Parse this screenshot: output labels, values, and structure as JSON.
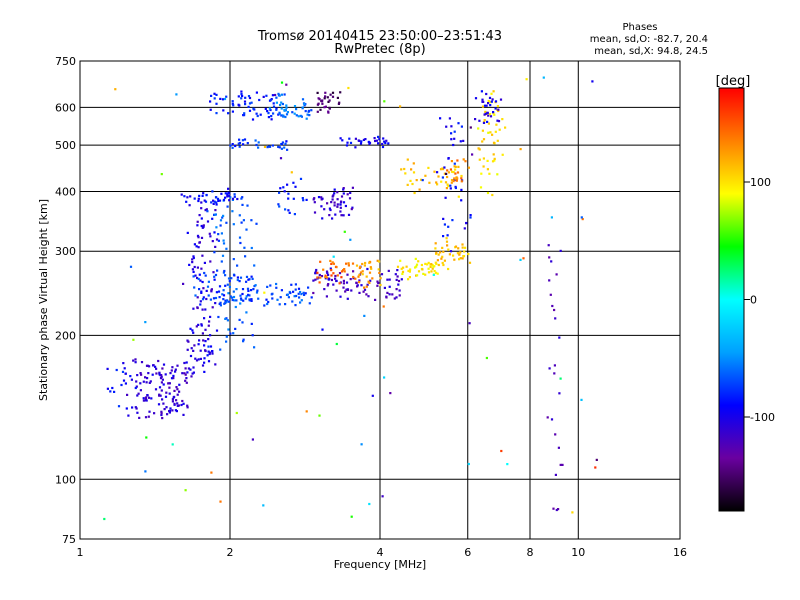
{
  "title": "Tromsø 20140415 23:50:00–23:51:43",
  "subtitle": "RwPretec (8p)",
  "phases": {
    "heading": "Phases",
    "line_o": "mean, sd,O: -82.7, 20.4",
    "line_x": "mean, sd,X:  94.8, 24.5"
  },
  "chart_data": {
    "type": "scatter",
    "xlabel": "Frequency [MHz]",
    "ylabel": "Stationary phase Virtual Height [km]",
    "x_scale": "log",
    "y_scale": "log",
    "xlim": [
      1,
      16
    ],
    "ylim": [
      75,
      750
    ],
    "x_ticks": [
      1,
      2,
      4,
      6,
      8,
      10,
      16
    ],
    "x_tick_labels": [
      "1",
      "2",
      "4",
      "6",
      "8",
      "10",
      "16"
    ],
    "y_ticks": [
      75,
      100,
      200,
      300,
      400,
      500,
      600,
      750
    ],
    "y_tick_labels": [
      "75",
      "100",
      "200",
      "300",
      "400",
      "500",
      "600",
      "750"
    ],
    "grid": true,
    "colorbar": {
      "label": "[deg]",
      "range": [
        -180,
        180
      ],
      "ticks": [
        100,
        0,
        -100
      ],
      "tick_labels": [
        "100",
        "0",
        "-100"
      ],
      "palette": [
        "#000000",
        "#6a00a0",
        "#0000ff",
        "#00a0ff",
        "#00ffff",
        "#00ff00",
        "#ffff00",
        "#ff8000",
        "#ff0000"
      ]
    },
    "trace_segments": [
      {
        "f": [
          1.25,
          1.65
        ],
        "h": [
          135,
          175
        ],
        "phase": -110,
        "n": 140,
        "jitter": 0.07
      },
      {
        "f": [
          1.15,
          1.3
        ],
        "h": [
          140,
          175
        ],
        "phase": -85,
        "n": 16,
        "jitter": 0.04
      },
      {
        "f": [
          1.65,
          1.85
        ],
        "h": [
          170,
          380
        ],
        "phase": -105,
        "n": 120,
        "jitter": 0.06
      },
      {
        "f": [
          1.85,
          2.2
        ],
        "h": [
          190,
          400
        ],
        "phase": -65,
        "n": 90,
        "jitter": 0.07
      },
      {
        "f": [
          1.6,
          2.1
        ],
        "h": [
          380,
          400
        ],
        "phase": -90,
        "n": 40,
        "jitter": 0.03
      },
      {
        "f": [
          1.7,
          2.2
        ],
        "h": [
          235,
          270
        ],
        "phase": -75,
        "n": 60,
        "jitter": 0.04
      },
      {
        "f": [
          1.8,
          2.5
        ],
        "h": [
          570,
          640
        ],
        "phase": -85,
        "n": 60,
        "jitter": 0.03
      },
      {
        "f": [
          2.0,
          2.6
        ],
        "h": [
          490,
          510
        ],
        "phase": -75,
        "n": 30,
        "jitter": 0.02
      },
      {
        "f": [
          2.2,
          2.9
        ],
        "h": [
          230,
          255
        ],
        "phase": -70,
        "n": 50,
        "jitter": 0.03
      },
      {
        "f": [
          2.4,
          2.9
        ],
        "h": [
          570,
          640
        ],
        "phase": -60,
        "n": 50,
        "jitter": 0.03
      },
      {
        "f": [
          2.5,
          2.8
        ],
        "h": [
          360,
          420
        ],
        "phase": -80,
        "n": 20,
        "jitter": 0.05
      },
      {
        "f": [
          2.9,
          4.4
        ],
        "h": [
          240,
          275
        ],
        "phase": -115,
        "n": 90,
        "jitter": 0.03
      },
      {
        "f": [
          3.0,
          3.3
        ],
        "h": [
          590,
          640
        ],
        "phase": -150,
        "n": 30,
        "jitter": 0.03
      },
      {
        "f": [
          3.0,
          3.5
        ],
        "h": [
          360,
          400
        ],
        "phase": -110,
        "n": 50,
        "jitter": 0.06
      },
      {
        "f": [
          3.0,
          3.6
        ],
        "h": [
          260,
          290
        ],
        "phase": 145,
        "n": 30,
        "jitter": 0.03
      },
      {
        "f": [
          3.3,
          4.2
        ],
        "h": [
          500,
          520
        ],
        "phase": -95,
        "n": 30,
        "jitter": 0.03
      },
      {
        "f": [
          3.6,
          4.0
        ],
        "h": [
          255,
          285
        ],
        "phase": 120,
        "n": 30,
        "jitter": 0.04
      },
      {
        "f": [
          4.3,
          5.2
        ],
        "h": [
          265,
          285
        ],
        "phase": 100,
        "n": 45,
        "jitter": 0.03
      },
      {
        "f": [
          5.2,
          6.0
        ],
        "h": [
          280,
          320
        ],
        "phase": 110,
        "n": 40,
        "jitter": 0.04
      },
      {
        "f": [
          4.5,
          5.8
        ],
        "h": [
          400,
          460
        ],
        "phase": 110,
        "n": 40,
        "jitter": 0.06
      },
      {
        "f": [
          5.3,
          6.0
        ],
        "h": [
          300,
          560
        ],
        "phase": -90,
        "n": 40,
        "jitter": 0.06
      },
      {
        "f": [
          5.5,
          6.0
        ],
        "h": [
          420,
          460
        ],
        "phase": 135,
        "n": 20,
        "jitter": 0.04
      },
      {
        "f": [
          6.4,
          7.0
        ],
        "h": [
          400,
          640
        ],
        "phase": 100,
        "n": 50,
        "jitter": 0.06
      },
      {
        "f": [
          6.3,
          6.9
        ],
        "h": [
          560,
          640
        ],
        "phase": -100,
        "n": 30,
        "jitter": 0.04
      },
      {
        "f": [
          8.8,
          9.2
        ],
        "h": [
          85,
          320
        ],
        "phase": -120,
        "n": 25,
        "jitter": 0.03
      },
      {
        "f": [
          1.1,
          12.0
        ],
        "h": [
          80,
          700
        ],
        "phase": 0,
        "n": 70,
        "jitter": 0.0,
        "scatter": true
      }
    ]
  }
}
